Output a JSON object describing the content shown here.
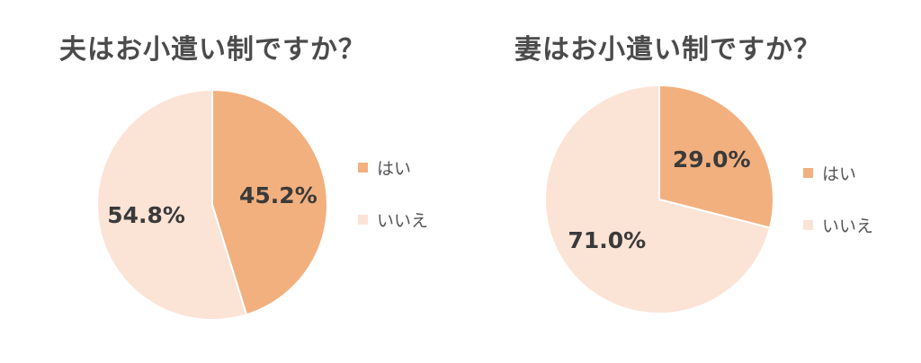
{
  "colors": {
    "yes": "#f2b07f",
    "no": "#fbe3d6",
    "border": "#ffffff",
    "label": "#3a3a3a"
  },
  "legend": {
    "yes": "はい",
    "no": "いいえ"
  },
  "chart_data": [
    {
      "type": "pie",
      "title": "夫はお小遣い制ですか？",
      "slices": [
        {
          "label": "はい",
          "value": 45.2,
          "display": "45.2%"
        },
        {
          "label": "いいえ",
          "value": 54.8,
          "display": "54.8%"
        }
      ],
      "legend_position": "right"
    },
    {
      "type": "pie",
      "title": "妻はお小遣い制ですか？",
      "slices": [
        {
          "label": "はい",
          "value": 29.0,
          "display": "29.0%"
        },
        {
          "label": "いいえ",
          "value": 71.0,
          "display": "71.0%"
        }
      ],
      "legend_position": "right"
    }
  ]
}
